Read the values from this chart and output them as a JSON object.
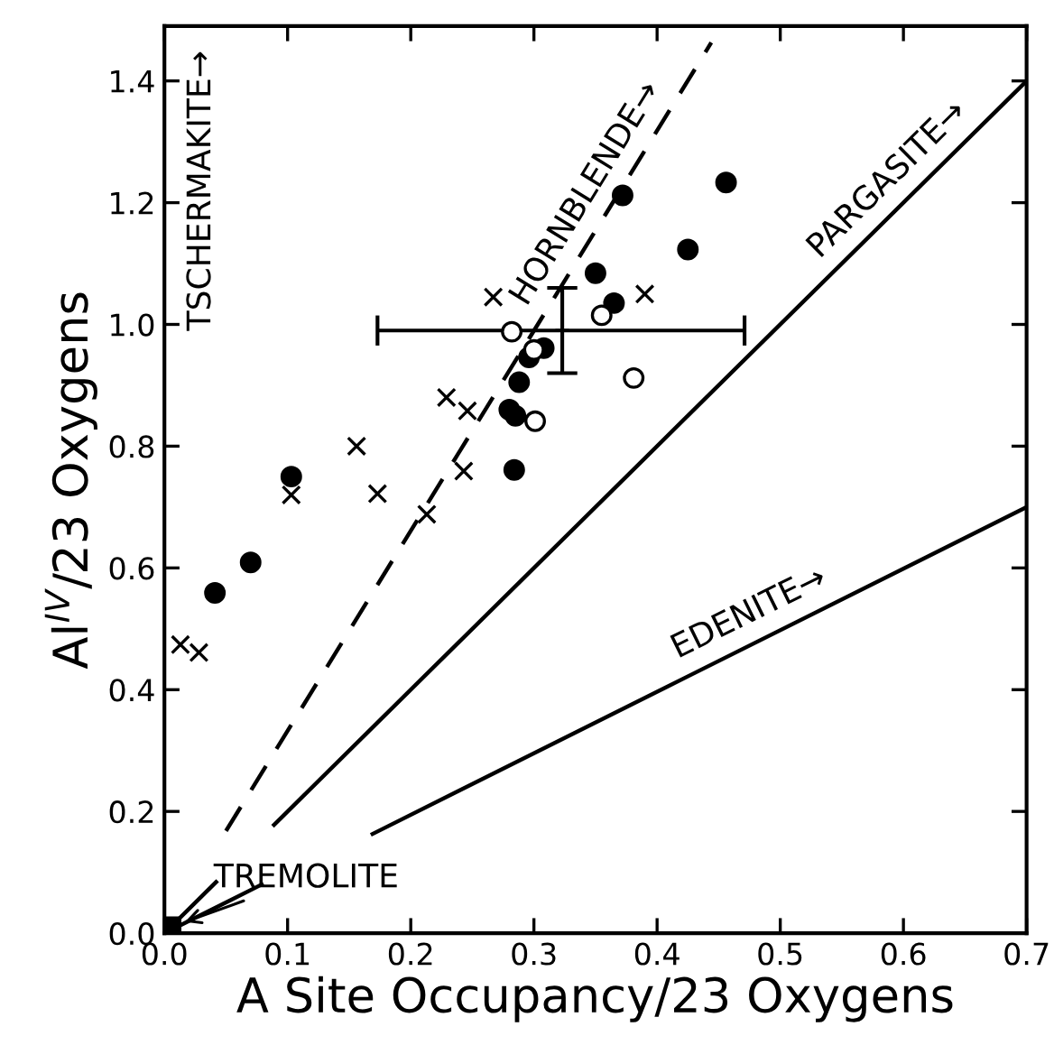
{
  "chart_data": {
    "type": "scatter",
    "xlabel": "A Site Occupancy/23 Oxygens",
    "ylabel": "Al$^{IV}$/23 Oxygens",
    "xlim": [
      0,
      0.7
    ],
    "ylim": [
      0,
      1.49
    ],
    "xticks": [
      {
        "value": 0,
        "label": "0.0"
      },
      0.1,
      0.2,
      0.3,
      0.4,
      0.5,
      0.6,
      0.7
    ],
    "yticks": [
      {
        "value": 0,
        "label": "0.0"
      },
      0.2,
      0.4,
      0.6,
      0.8,
      {
        "value": 1,
        "label": "1.0"
      },
      1.2,
      1.4
    ],
    "grid": false,
    "series": [
      {
        "marker": "circle",
        "color": "#000000",
        "x": [
          0.103,
          0.041,
          0.07,
          0.284,
          0.28,
          0.285,
          0.288,
          0.296,
          0.308,
          0.365,
          0.35,
          0.372,
          0.456,
          0.425
        ],
        "values": [
          0.75,
          0.559,
          0.609,
          0.761,
          0.86,
          0.85,
          0.905,
          0.946,
          0.961,
          1.035,
          1.084,
          1.212,
          1.233,
          1.123
        ]
      },
      {
        "marker": "circle",
        "color": "#ffffff",
        "x": [
          0.282,
          0.3,
          0.301,
          0.355,
          0.381
        ],
        "values": [
          0.988,
          0.958,
          0.841,
          1.015,
          0.912
        ]
      },
      {
        "marker": "cross",
        "color": "#000000",
        "x": [
          0.013,
          0.028,
          0.103,
          0.156,
          0.173,
          0.213,
          0.229,
          0.246,
          0.243,
          0.267,
          0.39
        ],
        "values": [
          0.474,
          0.461,
          0.72,
          0.8,
          0.722,
          0.688,
          0.88,
          0.858,
          0.759,
          1.045,
          1.05
        ]
      },
      {
        "marker": "square",
        "color": "#000000",
        "x": [
          0.005
        ],
        "values": [
          0.01
        ]
      },
      {
        "marker": "plus",
        "color": "#000000",
        "x": [
          0.323
        ],
        "values": [
          0.99
        ],
        "errors": [
          [
            0.92,
            1.06
          ]
        ],
        "xerrors": [
          [
            0.173,
            0.471
          ]
        ]
      },
      {
        "type": "line",
        "name": "PARGASITE→",
        "line_style": "solid",
        "color": "#000000",
        "x": [
          0.005,
          0.042,
          0.06,
          0.089,
          0.7
        ],
        "values": [
          0.01,
          0.084,
          null,
          0.178,
          1.4
        ]
      },
      {
        "type": "line",
        "name": "EDENITE→",
        "line_style": "solid",
        "color": "#000000",
        "x": [
          0.005,
          0.079,
          0.12,
          0.169,
          0.7
        ],
        "values": [
          0.005,
          0.08,
          null,
          0.163,
          0.7
        ]
      },
      {
        "type": "line",
        "name": "HORNBLENDE→",
        "line_style": "dashed",
        "color": "#000000",
        "x": [
          0.05,
          0.444
        ],
        "values": [
          0.168,
          1.463
        ]
      }
    ],
    "annotations": [
      "TSCHERMAKITE→",
      {
        "text": "TREMOLITE",
        "x": 0.005,
        "y": 0.01
      }
    ]
  }
}
